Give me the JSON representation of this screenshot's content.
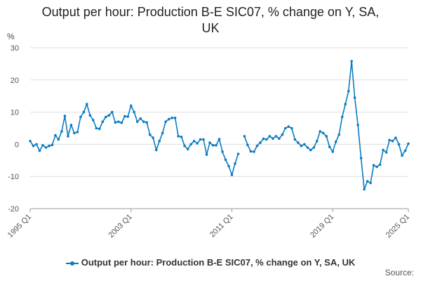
{
  "chart_data": {
    "type": "line",
    "title_line1": "Output per hour: Production B-E SIC07, % change on Y, SA,",
    "title_line2": "UK",
    "ylabel": "%",
    "ylim": [
      -20,
      30
    ],
    "yticks": [
      "-20",
      "-10",
      "0",
      "10",
      "20",
      "30"
    ],
    "xticks": [
      {
        "label": "1995 Q1",
        "q": 0
      },
      {
        "label": "2003 Q1",
        "q": 32
      },
      {
        "label": "2011 Q1",
        "q": 64
      },
      {
        "label": "2019 Q1",
        "q": 96
      },
      {
        "label": "2025 Q1",
        "q": 120
      }
    ],
    "grid": true,
    "legend_position": "bottom",
    "source_label": "Source:",
    "series": [
      {
        "name": "Output per hour: Production B-E SIC07, % change on Y, SA, UK",
        "color": "#0a7cc1",
        "start": "1995 Q1",
        "frequency": "quarterly",
        "values": [
          1.0,
          -0.5,
          0.0,
          -2.0,
          -0.3,
          -1.0,
          -0.5,
          -0.2,
          2.8,
          1.5,
          4.0,
          8.8,
          2.5,
          6.0,
          3.5,
          3.8,
          8.5,
          10.0,
          12.5,
          9.0,
          7.5,
          5.0,
          4.8,
          7.0,
          8.5,
          9.0,
          10.0,
          6.8,
          7.0,
          6.7,
          8.7,
          8.6,
          12.0,
          10.0,
          7.0,
          8.0,
          7.0,
          6.8,
          3.0,
          2.0,
          -1.8,
          1.0,
          3.5,
          7.0,
          7.8,
          8.2,
          8.2,
          2.5,
          2.3,
          -0.5,
          -1.5,
          0.0,
          1.0,
          0.3,
          1.5,
          1.5,
          -3.2,
          0.5,
          -0.3,
          -0.3,
          1.6,
          -2.3,
          -4.8,
          -6.8,
          -9.5,
          -6.0,
          -3.0,
          null,
          2.5,
          -0.2,
          -2.2,
          -2.3,
          -0.5,
          0.5,
          1.7,
          1.5,
          2.5,
          1.8,
          2.5,
          1.8,
          3.0,
          5.0,
          5.5,
          5.0,
          1.5,
          0.5,
          -0.5,
          0.0,
          -1.0,
          -1.8,
          -1.0,
          1.0,
          4.0,
          3.5,
          2.5,
          -0.8,
          -2.3,
          0.8,
          3.0,
          8.5,
          12.5,
          16.5,
          25.8,
          14.5,
          6.0,
          -4.3,
          -14.0,
          -11.5,
          -12.0,
          -6.5,
          -7.0,
          -6.3,
          -1.8,
          -2.5,
          1.3,
          1.0,
          2.0,
          0.0,
          -3.5,
          -2.0,
          0.2
        ]
      }
    ]
  }
}
